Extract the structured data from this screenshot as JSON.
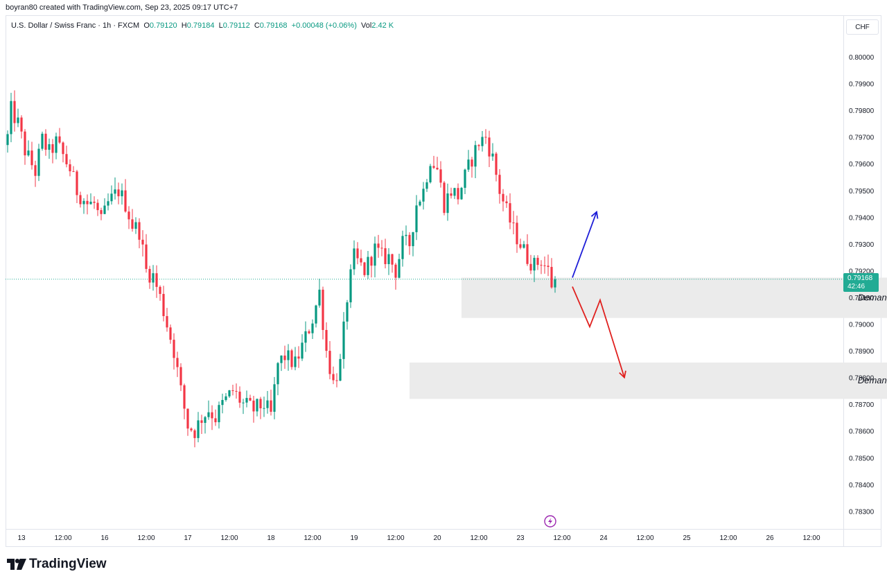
{
  "header": {
    "attribution": "boyran80 created with TradingView.com, Sep 23, 2025 09:17 UTC+7"
  },
  "legend": {
    "symbol": "U.S. Dollar / Swiss Franc · 1h · FXCM",
    "o_label": "O",
    "o_value": "0.79120",
    "h_label": "H",
    "h_value": "0.79184",
    "l_label": "L",
    "l_value": "0.79112",
    "c_label": "C",
    "c_value": "0.79168",
    "change": "+0.00048 (+0.06%)",
    "vol_label": "Vol",
    "vol_value": "2.42 K"
  },
  "price_axis": {
    "currency": "CHF",
    "current_price": "0.79168",
    "countdown": "42:46"
  },
  "footer": {
    "brand": "TradingView"
  },
  "colors": {
    "up": "#089981",
    "down": "#f23645",
    "zone": "#ebebeb",
    "arrow_up": "#1e1ed8",
    "arrow_down": "#e0201e",
    "price_line": "#22ab94"
  },
  "chart_data": {
    "type": "candlestick",
    "x_range": [
      "Sep 12 20:00",
      "Sep 26 13:00"
    ],
    "ylim": [
      0.7825,
      0.8006
    ],
    "y_ticks": [
      "0.78300",
      "0.78400",
      "0.78500",
      "0.78600",
      "0.78700",
      "0.78800",
      "0.78900",
      "0.79000",
      "0.79100",
      "0.79200",
      "0.79300",
      "0.79400",
      "0.79500",
      "0.79600",
      "0.79700",
      "0.79800",
      "0.79900",
      "0.80000"
    ],
    "x_ticks": [
      {
        "label": "13",
        "h": 4
      },
      {
        "label": "12:00",
        "h": 16
      },
      {
        "label": "16",
        "h": 28
      },
      {
        "label": "12:00",
        "h": 40
      },
      {
        "label": "17",
        "h": 52
      },
      {
        "label": "12:00",
        "h": 64
      },
      {
        "label": "18",
        "h": 76
      },
      {
        "label": "12:00",
        "h": 88
      },
      {
        "label": "19",
        "h": 100
      },
      {
        "label": "12:00",
        "h": 112
      },
      {
        "label": "20",
        "h": 124
      },
      {
        "label": "12:00",
        "h": 136
      },
      {
        "label": "23",
        "h": 148
      },
      {
        "label": "12:00",
        "h": 160
      },
      {
        "label": "24",
        "h": 172
      },
      {
        "label": "12:00",
        "h": 184
      },
      {
        "label": "25",
        "h": 196
      },
      {
        "label": "12:00",
        "h": 208
      },
      {
        "label": "26",
        "h": 220
      },
      {
        "label": "12:00",
        "h": 232
      }
    ],
    "waypoints": [
      [
        0,
        0.797
      ],
      [
        1,
        0.798
      ],
      [
        3,
        0.7975
      ],
      [
        5,
        0.7965
      ],
      [
        8,
        0.7957
      ],
      [
        10,
        0.7969
      ],
      [
        12,
        0.7964
      ],
      [
        14,
        0.7968
      ],
      [
        18,
        0.7958
      ],
      [
        20,
        0.795
      ],
      [
        23,
        0.7945
      ],
      [
        25,
        0.7945
      ],
      [
        27,
        0.7938
      ],
      [
        29,
        0.7945
      ],
      [
        32,
        0.795
      ],
      [
        34,
        0.7945
      ],
      [
        36,
        0.7937
      ],
      [
        38,
        0.7935
      ],
      [
        40,
        0.792
      ],
      [
        42,
        0.7918
      ],
      [
        44,
        0.791
      ],
      [
        46,
        0.79
      ],
      [
        48,
        0.789
      ],
      [
        50,
        0.7875
      ],
      [
        52,
        0.7862
      ],
      [
        54,
        0.786
      ],
      [
        56,
        0.7865
      ],
      [
        58,
        0.7868
      ],
      [
        60,
        0.7865
      ],
      [
        62,
        0.787
      ],
      [
        65,
        0.7875
      ],
      [
        68,
        0.787
      ],
      [
        71,
        0.7868
      ],
      [
        74,
        0.787
      ],
      [
        76,
        0.7866
      ],
      [
        78,
        0.7885
      ],
      [
        80,
        0.7888
      ],
      [
        83,
        0.7885
      ],
      [
        86,
        0.7895
      ],
      [
        88,
        0.7902
      ],
      [
        90,
        0.7912
      ],
      [
        92,
        0.789
      ],
      [
        94,
        0.7878
      ],
      [
        96,
        0.7885
      ],
      [
        98,
        0.791
      ],
      [
        100,
        0.7925
      ],
      [
        103,
        0.792
      ],
      [
        106,
        0.7928
      ],
      [
        108,
        0.7925
      ],
      [
        110,
        0.7925
      ],
      [
        112,
        0.792
      ],
      [
        114,
        0.793
      ],
      [
        116,
        0.793
      ],
      [
        118,
        0.7945
      ],
      [
        120,
        0.795
      ],
      [
        122,
        0.7962
      ],
      [
        124,
        0.7958
      ],
      [
        126,
        0.7945
      ],
      [
        128,
        0.795
      ],
      [
        130,
        0.7948
      ],
      [
        132,
        0.7955
      ],
      [
        134,
        0.7962
      ],
      [
        136,
        0.7968
      ],
      [
        138,
        0.797
      ],
      [
        140,
        0.7962
      ],
      [
        142,
        0.795
      ],
      [
        144,
        0.7942
      ],
      [
        146,
        0.7935
      ],
      [
        148,
        0.793
      ],
      [
        150,
        0.7925
      ],
      [
        152,
        0.7922
      ],
      [
        154,
        0.7924
      ],
      [
        156,
        0.792
      ],
      [
        157,
        0.7915
      ],
      [
        158,
        0.7917
      ]
    ],
    "demand_zones": [
      {
        "label": "Demand",
        "h_start": 131,
        "h_end": 256,
        "y_low": 0.79023,
        "y_high": 0.79174
      },
      {
        "label": "Demand",
        "h_start": 116,
        "h_end": 256,
        "y_low": 0.7872,
        "y_high": 0.78856
      }
    ],
    "arrows": [
      {
        "direction": "up",
        "points": [
          [
            163,
            0.79174
          ],
          [
            170,
            0.7942
          ]
        ]
      },
      {
        "direction": "down",
        "points": [
          [
            163,
            0.7914
          ],
          [
            168,
            0.7899
          ],
          [
            171,
            0.7909
          ],
          [
            178,
            0.788
          ]
        ]
      }
    ]
  }
}
